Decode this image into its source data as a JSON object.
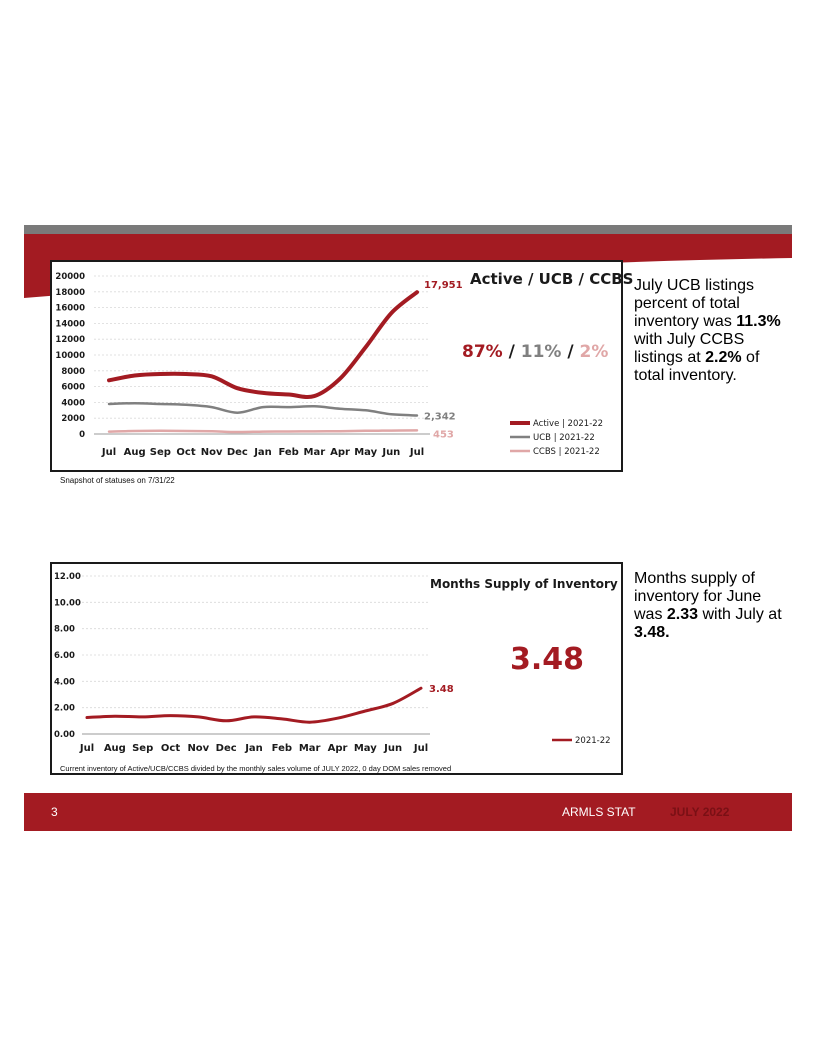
{
  "colors": {
    "brand_red": "#a31b22",
    "ucb_gray": "#808080",
    "ccbs_pink": "#e0a7a7",
    "band_gray": "#7a7a7a"
  },
  "chart_data": [
    {
      "type": "line",
      "title": "Active / UCB / CCBS",
      "categories": [
        "Jul",
        "Aug",
        "Sep",
        "Oct",
        "Nov",
        "Dec",
        "Jan",
        "Feb",
        "Mar",
        "Apr",
        "May",
        "Jun",
        "Jul"
      ],
      "ylim": [
        0,
        20000
      ],
      "yticks": [
        "20000",
        "18000",
        "16000",
        "14000",
        "12000",
        "10000",
        "8000",
        "6000",
        "4000",
        "2000",
        "0"
      ],
      "grid": true,
      "legend_position": "bottom-right",
      "series": [
        {
          "name": "Active | 2021-22",
          "color": "#a31b22",
          "values": [
            6800,
            7400,
            7600,
            7600,
            7300,
            5800,
            5200,
            5000,
            4800,
            7000,
            11000,
            15300,
            17951
          ],
          "end_label": "17,951"
        },
        {
          "name": "UCB | 2021-22",
          "color": "#808080",
          "values": [
            3800,
            3900,
            3800,
            3700,
            3400,
            2700,
            3400,
            3400,
            3500,
            3200,
            3000,
            2500,
            2342
          ],
          "end_label": "2,342"
        },
        {
          "name": "CCBS | 2021-22",
          "color": "#e0a7a7",
          "values": [
            300,
            380,
            400,
            380,
            350,
            250,
            300,
            320,
            330,
            360,
            400,
            430,
            453
          ],
          "end_label": "453"
        }
      ],
      "shares": [
        {
          "text": "87%",
          "color": "#a31b22"
        },
        {
          "text": "11%",
          "color": "#808080"
        },
        {
          "text": "2%",
          "color": "#e0a7a7"
        }
      ],
      "separator": "/",
      "caption": "Snapshot of statuses on 7/31/22"
    },
    {
      "type": "line",
      "title": "Months Supply of Inventory",
      "categories": [
        "Jul",
        "Aug",
        "Sep",
        "Oct",
        "Nov",
        "Dec",
        "Jan",
        "Feb",
        "Mar",
        "Apr",
        "May",
        "Jun",
        "Jul"
      ],
      "ylim": [
        0,
        12
      ],
      "yticks": [
        "12.00",
        "10.00",
        "8.00",
        "6.00",
        "4.00",
        "2.00",
        "0.00"
      ],
      "grid": true,
      "legend_position": "bottom-right",
      "series": [
        {
          "name": "2021-22",
          "color": "#a31b22",
          "values": [
            1.25,
            1.35,
            1.3,
            1.4,
            1.3,
            1.0,
            1.3,
            1.15,
            0.9,
            1.2,
            1.75,
            2.33,
            3.48
          ],
          "end_label": "3.48"
        }
      ],
      "headline_value": "3.48",
      "caption": "Current inventory of Active/UCB/CCBS divided by the monthly sales volume of JULY 2022, 0 day DOM sales removed"
    }
  ],
  "notes": {
    "ucb": [
      "July UCB listings percent of total inventory was ",
      "11.3%",
      " with July CCBS listings at ",
      "2.2%",
      " of total inventory."
    ],
    "supply": [
      "Months supply of inventory for June was ",
      "2.33",
      " with July at ",
      "3.48."
    ]
  },
  "footer": {
    "page_number": "3",
    "brand": "ARMLS STAT",
    "period": "JULY 2022",
    "period_color": "#7a1015"
  }
}
